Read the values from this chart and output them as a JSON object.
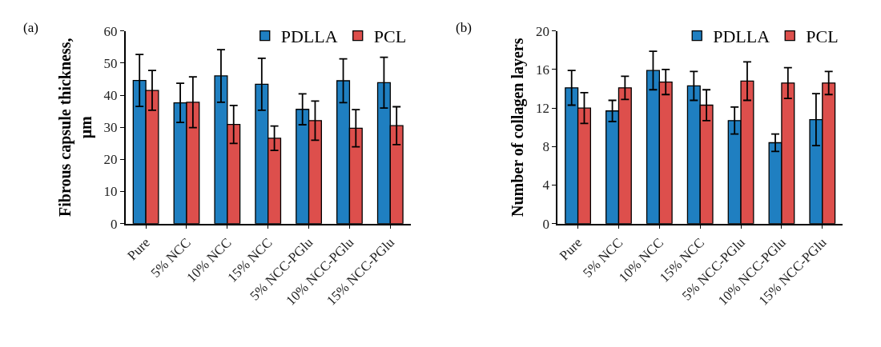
{
  "chart_data": [
    {
      "type": "bar",
      "ylabel": "Fibrous capsule thickness,\nμm",
      "annotations": [
        "(a)"
      ],
      "categories": [
        "Pure",
        "5% NCC",
        "10% NCC",
        "15% NCC",
        "5% NCC-PGlu",
        "10% NCC-PGlu",
        "15% NCC-PGlu"
      ],
      "ylim": [
        0,
        60
      ],
      "yticks": [
        0,
        10,
        20,
        30,
        40,
        50,
        60
      ],
      "legend": "top right",
      "series": [
        {
          "name": "PDLLA",
          "color": "#1f7fc1",
          "values": [
            44.6,
            37.6,
            46.0,
            43.4,
            35.6,
            44.5,
            43.9
          ],
          "errors": [
            8.1,
            6.1,
            8.2,
            8.1,
            4.8,
            6.8,
            7.9
          ]
        },
        {
          "name": "PCL",
          "color": "#dd4f4c",
          "values": [
            41.5,
            37.8,
            30.9,
            26.6,
            32.1,
            29.7,
            30.5
          ],
          "errors": [
            6.2,
            7.9,
            5.9,
            3.8,
            6.1,
            5.8,
            5.9
          ]
        }
      ]
    },
    {
      "type": "bar",
      "ylabel": "Number of collagen layers",
      "annotations": [
        "(b)"
      ],
      "categories": [
        "Pure",
        "5% NCC",
        "10% NCC",
        "15% NCC",
        "5% NCC-PGlu",
        "10% NCC-PGlu",
        "15% NCC-PGlu"
      ],
      "ylim": [
        0,
        20
      ],
      "yticks": [
        0,
        4,
        8,
        12,
        16,
        20
      ],
      "legend": "top right",
      "series": [
        {
          "name": "PDLLA",
          "color": "#1f7fc1",
          "values": [
            14.1,
            11.7,
            15.9,
            14.3,
            10.7,
            8.4,
            10.8
          ],
          "errors": [
            1.8,
            1.1,
            2.0,
            1.5,
            1.4,
            0.9,
            2.7
          ]
        },
        {
          "name": "PCL",
          "color": "#dd4f4c",
          "values": [
            12.0,
            14.1,
            14.7,
            12.3,
            14.8,
            14.6,
            14.6
          ],
          "errors": [
            1.6,
            1.2,
            1.3,
            1.6,
            2.0,
            1.6,
            1.2
          ]
        }
      ]
    }
  ]
}
